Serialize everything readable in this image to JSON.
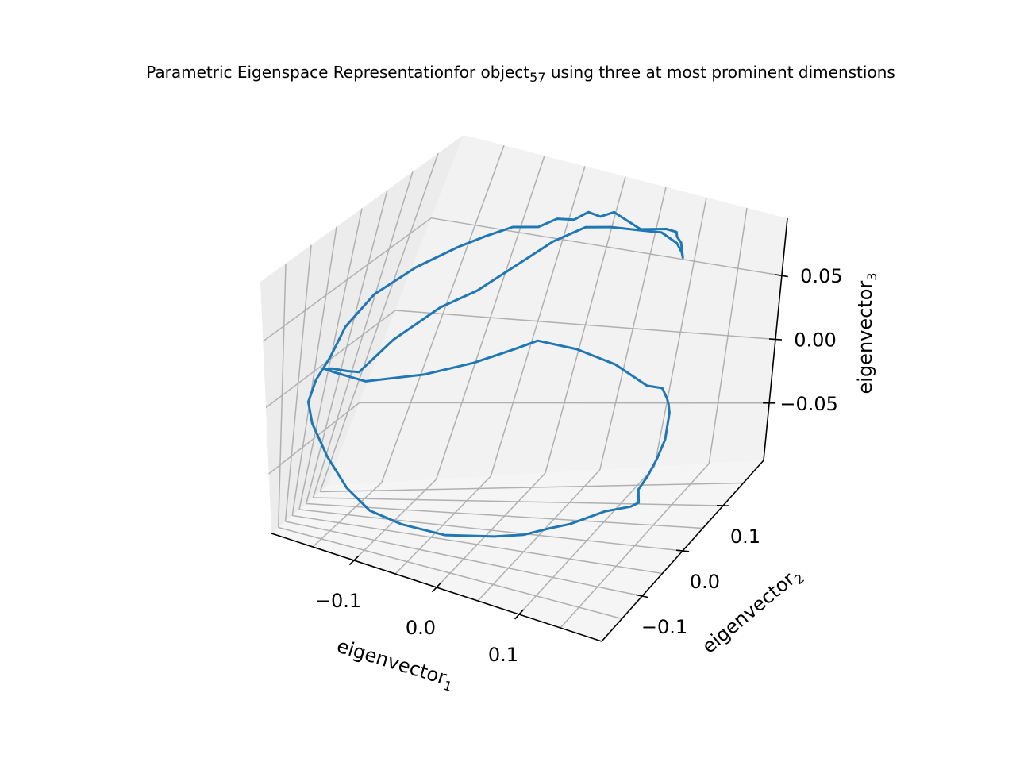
{
  "colors": {
    "series": "#1f77b4"
  },
  "chart_data": {
    "type": "line3d",
    "title": {
      "before": "Parametric Eigenspace Representationfor object",
      "subscript": "57",
      "after": " using three at most prominent dimenstions"
    },
    "xlabel": {
      "base": "eigenvector",
      "subscript": "1"
    },
    "ylabel": {
      "base": "eigenvector",
      "subscript": "2"
    },
    "zlabel": {
      "base": "eigenvector",
      "subscript": "3"
    },
    "xticks": [
      {
        "value": -0.1,
        "label": "−0.1"
      },
      {
        "value": 0.0,
        "label": "0.0"
      },
      {
        "value": 0.1,
        "label": "0.1"
      }
    ],
    "yticks": [
      {
        "value": -0.1,
        "label": "−0.1"
      },
      {
        "value": 0.0,
        "label": "0.0"
      },
      {
        "value": 0.1,
        "label": "0.1"
      }
    ],
    "zticks": [
      {
        "value": -0.05,
        "label": "−0.05"
      },
      {
        "value": 0.0,
        "label": "0.00"
      },
      {
        "value": 0.05,
        "label": "0.05"
      }
    ],
    "xlim": [
      -0.2,
      0.2
    ],
    "ylim": [
      -0.2,
      0.2
    ],
    "zlim": [
      -0.095,
      0.095
    ],
    "grid": true,
    "series": [
      {
        "points": [
          [
            -0.15,
            -0.05,
            0.005
          ],
          [
            -0.12,
            -0.04,
            0.028
          ],
          [
            -0.08,
            -0.02,
            0.05
          ],
          [
            -0.05,
            0.0,
            0.06
          ],
          [
            -0.02,
            0.03,
            0.075
          ],
          [
            0.0,
            0.06,
            0.085
          ],
          [
            0.02,
            0.09,
            0.09
          ],
          [
            0.04,
            0.11,
            0.088
          ],
          [
            0.06,
            0.13,
            0.084
          ],
          [
            0.08,
            0.15,
            0.08
          ],
          [
            0.095,
            0.16,
            0.072
          ],
          [
            0.1,
            0.165,
            0.065
          ],
          [
            0.1,
            0.17,
            0.06
          ],
          [
            0.095,
            0.17,
            0.07
          ],
          [
            0.09,
            0.168,
            0.074
          ],
          [
            0.09,
            0.165,
            0.078
          ],
          [
            0.08,
            0.16,
            0.08
          ],
          [
            0.06,
            0.14,
            0.082
          ],
          [
            0.04,
            0.13,
            0.09
          ],
          [
            0.035,
            0.12,
            0.095
          ],
          [
            0.02,
            0.12,
            0.09
          ],
          [
            0.01,
            0.11,
            0.094
          ],
          [
            0.0,
            0.1,
            0.09
          ],
          [
            -0.01,
            0.08,
            0.094
          ],
          [
            -0.02,
            0.06,
            0.092
          ],
          [
            -0.04,
            0.04,
            0.094
          ],
          [
            -0.06,
            0.02,
            0.09
          ],
          [
            -0.08,
            0.0,
            0.085
          ],
          [
            -0.11,
            -0.03,
            0.075
          ],
          [
            -0.14,
            -0.06,
            0.06
          ],
          [
            -0.16,
            -0.08,
            0.04
          ],
          [
            -0.17,
            -0.09,
            0.02
          ],
          [
            -0.18,
            -0.1,
            0.005
          ],
          [
            -0.185,
            -0.105,
            -0.01
          ],
          [
            -0.18,
            -0.1,
            -0.025
          ],
          [
            -0.16,
            -0.1,
            -0.045
          ],
          [
            -0.13,
            -0.12,
            -0.06
          ],
          [
            -0.1,
            -0.13,
            -0.07
          ],
          [
            -0.06,
            -0.14,
            -0.072
          ],
          [
            -0.01,
            -0.14,
            -0.072
          ],
          [
            0.04,
            -0.12,
            -0.07
          ],
          [
            0.07,
            -0.11,
            -0.067
          ],
          [
            0.09,
            -0.09,
            -0.065
          ],
          [
            0.11,
            -0.08,
            -0.062
          ],
          [
            0.14,
            -0.06,
            -0.055
          ],
          [
            0.16,
            -0.04,
            -0.055
          ],
          [
            0.16,
            -0.02,
            -0.058
          ],
          [
            0.155,
            -0.01,
            -0.052
          ],
          [
            0.16,
            0.0,
            -0.045
          ],
          [
            0.165,
            0.01,
            -0.035
          ],
          [
            0.16,
            0.04,
            -0.03
          ],
          [
            0.15,
            0.07,
            -0.02
          ],
          [
            0.14,
            0.09,
            -0.02
          ],
          [
            0.13,
            0.11,
            -0.022
          ],
          [
            0.12,
            0.12,
            -0.018
          ],
          [
            0.1,
            0.13,
            -0.02
          ],
          [
            0.06,
            0.14,
            -0.01
          ],
          [
            0.02,
            0.13,
            0.0
          ],
          [
            -0.02,
            0.12,
            0.005
          ],
          [
            -0.04,
            0.11,
            0.0
          ],
          [
            -0.07,
            0.08,
            -0.005
          ],
          [
            -0.11,
            0.05,
            -0.01
          ],
          [
            -0.16,
            0.01,
            -0.012
          ],
          [
            -0.19,
            -0.01,
            -0.006
          ],
          [
            -0.2,
            -0.015,
            -0.004
          ],
          [
            -0.19,
            -0.02,
            -0.002
          ],
          [
            -0.17,
            -0.03,
            0.0
          ],
          [
            -0.15,
            -0.05,
            0.005
          ]
        ]
      }
    ]
  }
}
